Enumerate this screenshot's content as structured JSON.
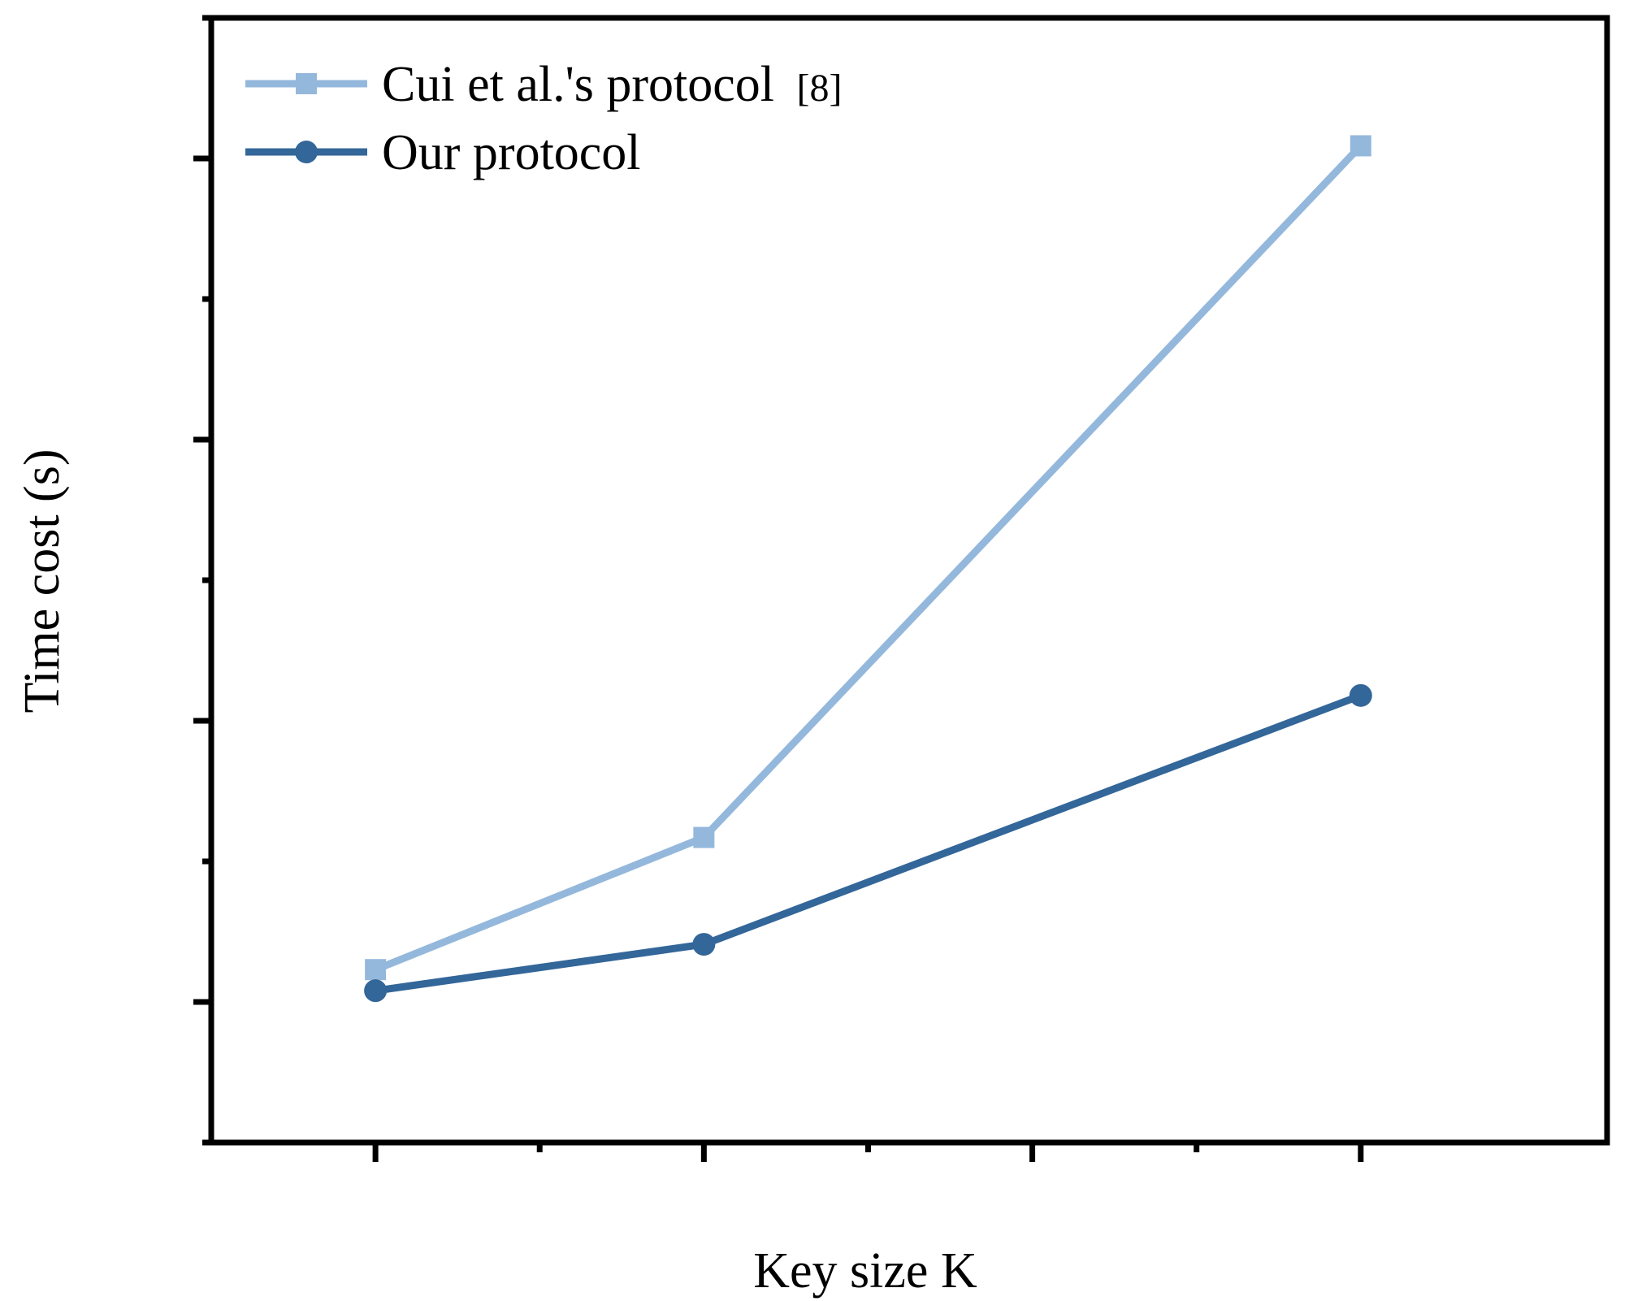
{
  "chart_data": {
    "type": "line",
    "title": "",
    "xlabel": "Key size K",
    "ylabel": "Time cost (s)",
    "x": [
      1,
      3,
      7
    ],
    "xlim": [
      0,
      8.5
    ],
    "ylim": [
      0,
      8
    ],
    "x_tick_labels_shown": false,
    "y_tick_labels_shown": false,
    "grid": false,
    "legend_position": "top-left",
    "series": [
      {
        "name": "Cui et al.'s protocol",
        "name_suffix": "[8]",
        "values": [
          1.23,
          2.17,
          7.09
        ],
        "color": "#94b8dc",
        "marker": "square"
      },
      {
        "name": "Our protocol",
        "values": [
          1.08,
          1.41,
          3.18
        ],
        "color": "#336699",
        "marker": "circle"
      }
    ]
  }
}
